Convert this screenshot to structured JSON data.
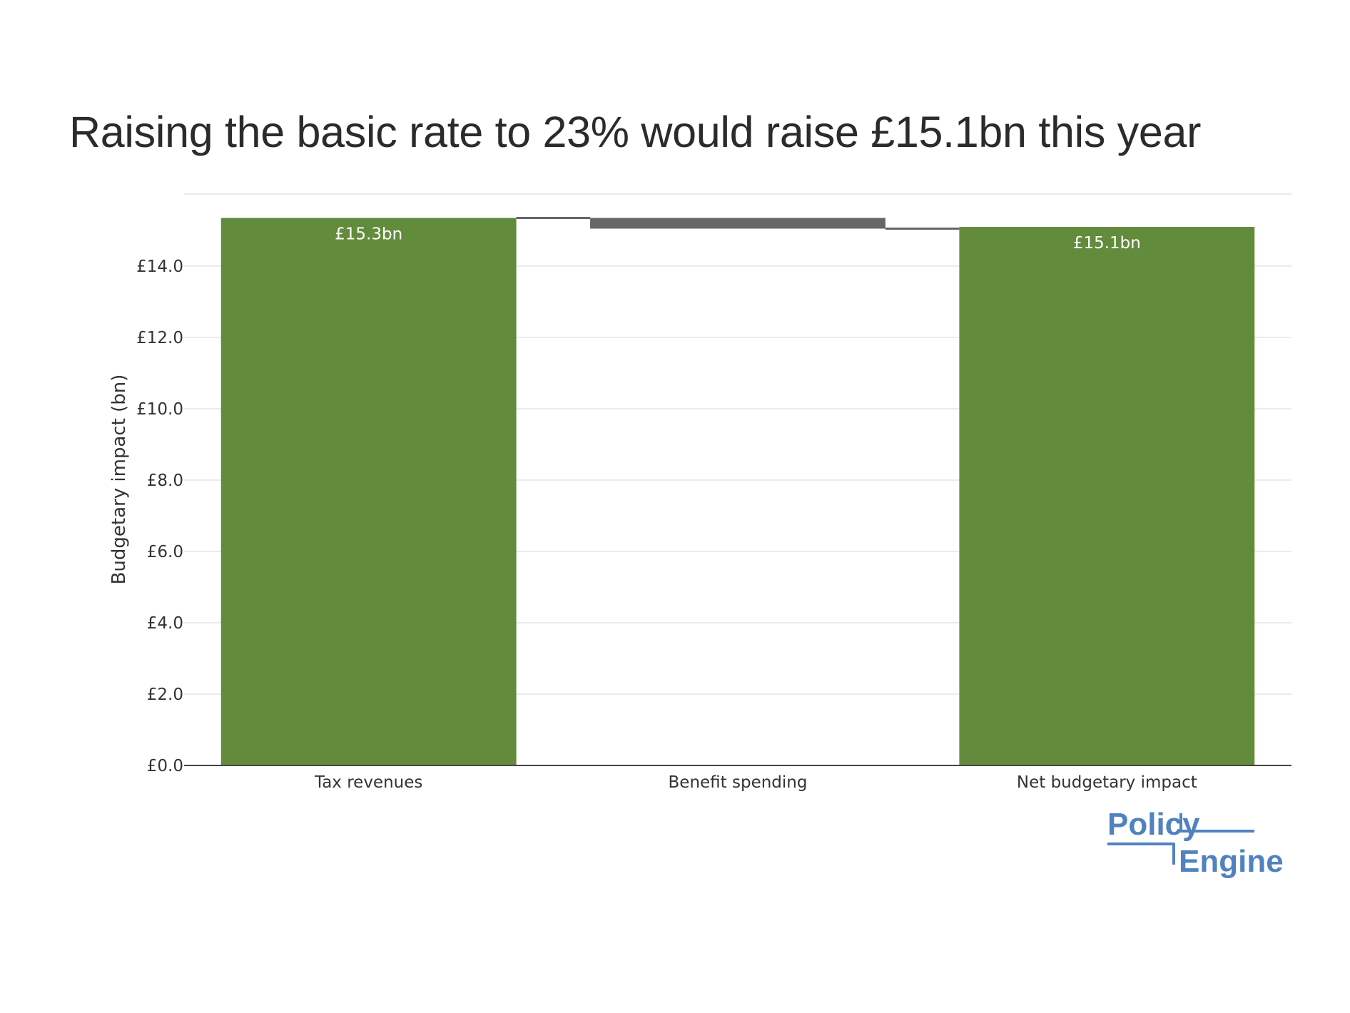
{
  "chart_data": {
    "type": "waterfall",
    "title": "Raising the basic rate to 23% would raise £15.1bn this year",
    "ylabel": "Budgetary impact (bn)",
    "xlabel": "",
    "ylim": [
      0,
      15.5
    ],
    "y_ticks": [
      0,
      2,
      4,
      6,
      8,
      10,
      12,
      14
    ],
    "y_tick_labels": [
      "£0.0",
      "£2.0",
      "£4.0",
      "£6.0",
      "£8.0",
      "£10.0",
      "£12.0",
      "£14.0"
    ],
    "grid": true,
    "categories": [
      "Tax revenues",
      "Benefit spending",
      "Net budgetary impact"
    ],
    "bars": [
      {
        "category": "Tax revenues",
        "kind": "relative",
        "value": 15.35,
        "label": "£15.3bn"
      },
      {
        "category": "Benefit spending",
        "kind": "relative",
        "value": -0.3,
        "label": ""
      },
      {
        "category": "Net budgetary impact",
        "kind": "total",
        "value": 15.1,
        "label": "£15.1bn"
      }
    ],
    "colors": {
      "positive": "#638b3c",
      "negative": "#666666",
      "connector": "#666666"
    }
  },
  "logo": {
    "line1": "Policy",
    "line2": "Engine",
    "color": "#5182c0"
  }
}
